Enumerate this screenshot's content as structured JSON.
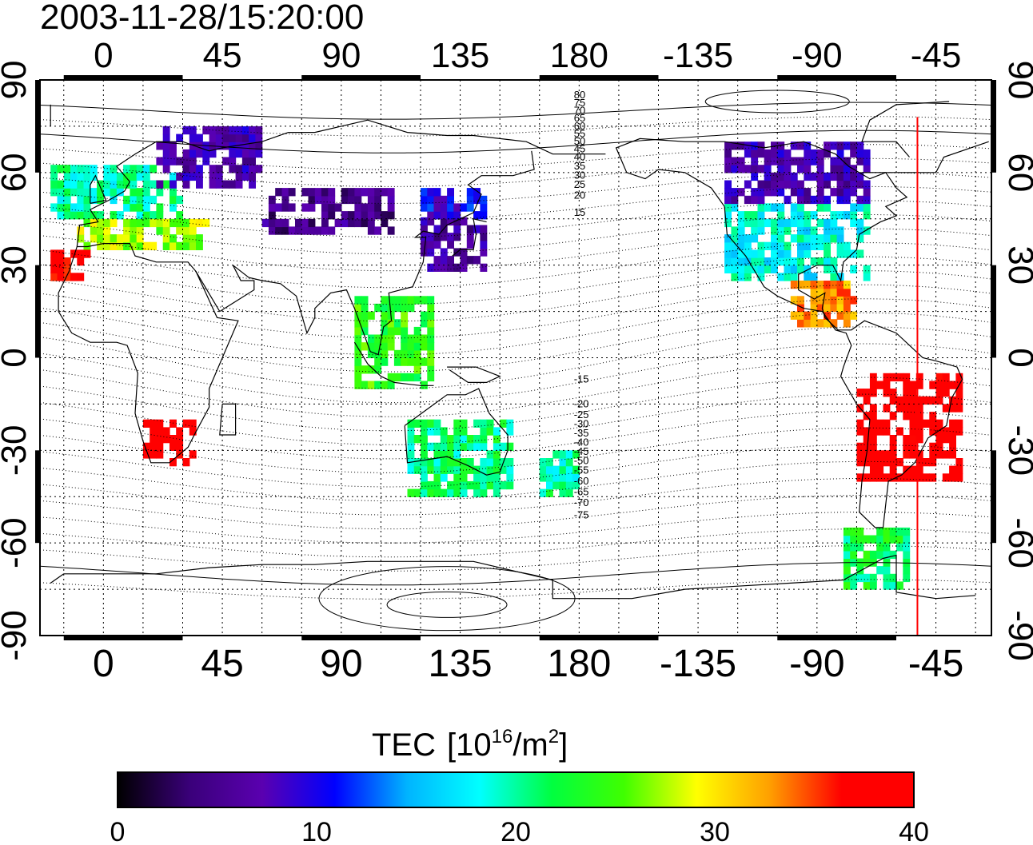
{
  "title": "2003-11-28/15:20:00",
  "colorbar": {
    "label": "TEC",
    "unit_prefix": "[10",
    "unit_exp": "16",
    "unit_mid": "/m",
    "unit_exp2": "2",
    "unit_suffix": "]",
    "min": 0,
    "max": 40,
    "ticks": [
      "0",
      "10",
      "20",
      "30",
      "40"
    ],
    "stops": [
      "#000000",
      "#3a007a",
      "#5a00b0",
      "#0000ff",
      "#00b4ff",
      "#00ffff",
      "#00ff40",
      "#40ff00",
      "#ffff00",
      "#ffa000",
      "#ff0000",
      "#ff0000"
    ]
  },
  "map": {
    "x_tick_labels": [
      "0",
      "45",
      "90",
      "135",
      "180",
      "-135",
      "-90",
      "-45"
    ],
    "y_tick_labels": [
      "90",
      "60",
      "30",
      "0",
      "-30",
      "-60",
      "-90"
    ],
    "magnetic_latitude_labels": [
      "80",
      "75",
      "70",
      "65",
      "60",
      "55",
      "50",
      "45",
      "40",
      "35",
      "30",
      "25",
      "20",
      "15",
      "-15",
      "-20",
      "-25",
      "-30",
      "-35",
      "-40",
      "-45",
      "-50",
      "-55",
      "-60",
      "-65",
      "-70",
      "-75"
    ],
    "terminator_longitude": -52,
    "terminator_color": "#ff0000",
    "grid": "dotted, every 15 degrees"
  },
  "chart_data": {
    "type": "heatmap",
    "title": "2003-11-28/15:20:00",
    "xlabel": "",
    "ylabel": "",
    "xlim": [
      -24,
      336
    ],
    "ylim": [
      -90,
      90
    ],
    "colorbar_label": "TEC [10^16/m^2]",
    "value_range": [
      0,
      40
    ],
    "regions": [
      {
        "lon": [
          -20,
          30
        ],
        "lat": [
          45,
          62
        ],
        "tec": 20
      },
      {
        "lon": [
          -10,
          40
        ],
        "lat": [
          35,
          45
        ],
        "tec": 27
      },
      {
        "lon": [
          20,
          60
        ],
        "lat": [
          55,
          75
        ],
        "tec": 7
      },
      {
        "lon": [
          -20,
          -5
        ],
        "lat": [
          25,
          35
        ],
        "tec": 38
      },
      {
        "lon": [
          15,
          35
        ],
        "lat": [
          -35,
          -22
        ],
        "tec": 39
      },
      {
        "lon": [
          120,
          145
        ],
        "lat": [
          28,
          45
        ],
        "tec": 6
      },
      {
        "lon": [
          120,
          145
        ],
        "lat": [
          45,
          55
        ],
        "tec": 10
      },
      {
        "lon": [
          60,
          110
        ],
        "lat": [
          40,
          55
        ],
        "tec": 5
      },
      {
        "lon": [
          -125,
          -70
        ],
        "lat": [
          25,
          50
        ],
        "tec": 18
      },
      {
        "lon": [
          -125,
          -70
        ],
        "lat": [
          50,
          70
        ],
        "tec": 7
      },
      {
        "lon": [
          -100,
          -75
        ],
        "lat": [
          10,
          25
        ],
        "tec": 33
      },
      {
        "lon": [
          -75,
          -35
        ],
        "lat": [
          -40,
          -5
        ],
        "tec": 39
      },
      {
        "lon": [
          115,
          155
        ],
        "lat": [
          -45,
          -20
        ],
        "tec": 21
      },
      {
        "lon": [
          165,
          180
        ],
        "lat": [
          -45,
          -30
        ],
        "tec": 20
      },
      {
        "lon": [
          -80,
          -55
        ],
        "lat": [
          -75,
          -55
        ],
        "tec": 22
      },
      {
        "lon": [
          95,
          125
        ],
        "lat": [
          -10,
          20
        ],
        "tec": 24
      }
    ]
  }
}
